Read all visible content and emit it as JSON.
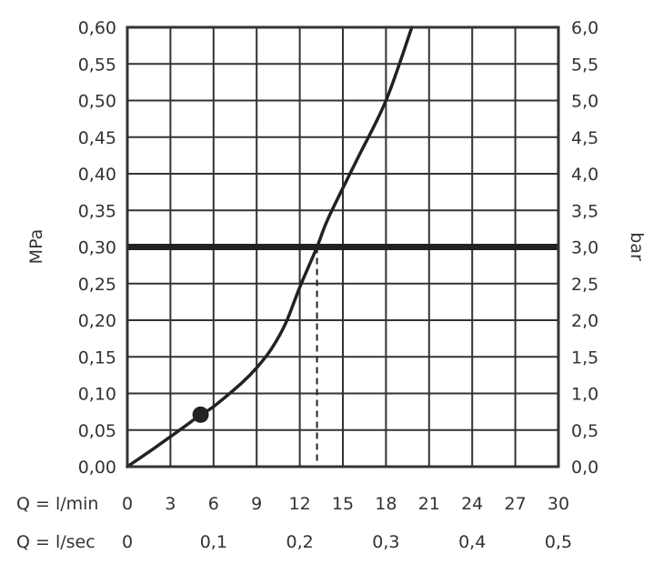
{
  "chart_data": {
    "type": "line",
    "title": "",
    "grid": true,
    "y_left": {
      "label": "MPa",
      "range": [
        0,
        0.6
      ],
      "ticks": [
        "0,00",
        "0,05",
        "0,10",
        "0,15",
        "0,20",
        "0,25",
        "0,30",
        "0,35",
        "0,40",
        "0,45",
        "0,50",
        "0,55",
        "0,60"
      ]
    },
    "y_right": {
      "label": "bar",
      "range": [
        0,
        6
      ],
      "ticks": [
        "0,0",
        "0,5",
        "1,0",
        "1,5",
        "2,0",
        "2,5",
        "3,0",
        "3,5",
        "4,0",
        "4,5",
        "5,0",
        "5,5",
        "6,0"
      ]
    },
    "x_primary": {
      "label": "Q = l/min",
      "range": [
        0,
        30
      ],
      "ticks": [
        {
          "value": 0,
          "label": "0"
        },
        {
          "value": 3,
          "label": "3"
        },
        {
          "value": 6,
          "label": "6"
        },
        {
          "value": 9,
          "label": "9"
        },
        {
          "value": 12,
          "label": "12"
        },
        {
          "value": 15,
          "label": "15"
        },
        {
          "value": 18,
          "label": "18"
        },
        {
          "value": 21,
          "label": "21"
        },
        {
          "value": 24,
          "label": "24"
        },
        {
          "value": 27,
          "label": "27"
        },
        {
          "value": 30,
          "label": "30"
        }
      ]
    },
    "x_secondary": {
      "label": "Q = l/sec",
      "ticks": [
        {
          "value": 0,
          "label": "0"
        },
        {
          "value": 0.1,
          "label": "0,1"
        },
        {
          "value": 0.2,
          "label": "0,2"
        },
        {
          "value": 0.3,
          "label": "0,3"
        },
        {
          "value": 0.4,
          "label": "0,4"
        },
        {
          "value": 0.5,
          "label": "0,5"
        }
      ]
    },
    "series": [
      {
        "x": [
          0,
          2,
          4,
          5.1,
          6,
          8,
          9,
          10,
          11,
          12,
          13.2,
          14,
          16,
          18,
          19.8
        ],
        "y": [
          0,
          0.027,
          0.055,
          0.071,
          0.082,
          0.115,
          0.135,
          0.16,
          0.195,
          0.245,
          0.3,
          0.34,
          0.42,
          0.5,
          0.6
        ]
      }
    ],
    "marker_point": {
      "x": 5.1,
      "y": 0.071
    },
    "reference_line_y": 0.3,
    "reference_drop_x": 13.2,
    "colors": {
      "line": "#222222",
      "grid": "#333333",
      "text": "#333333"
    }
  }
}
